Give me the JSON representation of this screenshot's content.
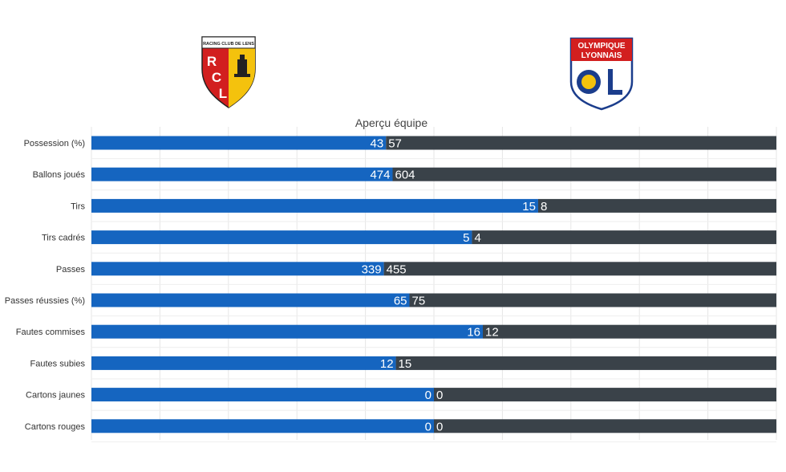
{
  "teams": {
    "home": {
      "logo": "rc-lens-crest",
      "logo_text": "RACING CLUB DE LENS",
      "logo_letters": "RCL",
      "color": "#1565c0"
    },
    "away": {
      "logo": "olympique-lyonnais-crest",
      "logo_text_1": "OLYMPIQUE",
      "logo_text_2": "LYONNAIS",
      "color": "#3a4249"
    }
  },
  "chart_data": {
    "type": "bar",
    "orientation": "horizontal-stacked",
    "title": "Aperçu équipe",
    "categories": [
      "Possession (%)",
      "Ballons joués",
      "Tirs",
      "Tirs cadrés",
      "Passes",
      "Passes réussies (%)",
      "Fautes commises",
      "Fautes subies",
      "Cartons jaunes",
      "Cartons rouges"
    ],
    "series": [
      {
        "values": [
          43,
          474,
          15,
          5,
          339,
          65,
          16,
          12,
          0,
          0
        ],
        "color": "#1565c0"
      },
      {
        "values": [
          57,
          604,
          8,
          4,
          455,
          75,
          12,
          15,
          0,
          0
        ],
        "color": "#3a4249"
      }
    ],
    "grid": true,
    "legend": "none"
  }
}
